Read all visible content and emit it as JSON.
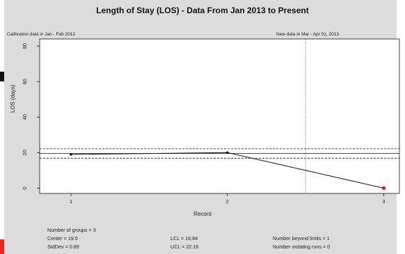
{
  "chart_data": {
    "type": "line",
    "title": "Length of Stay (LOS) - Data From Jan 2013 to Present",
    "xlabel": "Record",
    "ylabel": "LOS (days)",
    "x": [
      1,
      2,
      3
    ],
    "xlim": [
      0.8,
      3.1
    ],
    "ylim": [
      -3,
      84
    ],
    "xticks": [
      "1",
      "2",
      "3"
    ],
    "yticks": [
      "0",
      "20",
      "40",
      "60",
      "80"
    ],
    "series": [
      {
        "values": [
          19,
          20,
          0
        ]
      }
    ],
    "center": 19.5,
    "lcl": 16.84,
    "ucl": 22.16,
    "divider_x": 2.5,
    "beyond_limits": [
      3
    ],
    "colors": {
      "line": "#111111",
      "beyond_limit_point": "#ff0000"
    },
    "annotations": {
      "calibration": "Calibration data in Jan - Feb 2013",
      "new_data": "New data in Mar - Apr 01, 2013"
    },
    "stats": {
      "groups": "Number of groups = 3",
      "center": "Center = 19.5",
      "stddev": "StdDev = 0.89",
      "lcl": "LCL = 16.84",
      "ucl": "UCL = 22.16",
      "beyond": "Number beyond limits = 1",
      "runs": "Number violating runs = 0"
    }
  }
}
